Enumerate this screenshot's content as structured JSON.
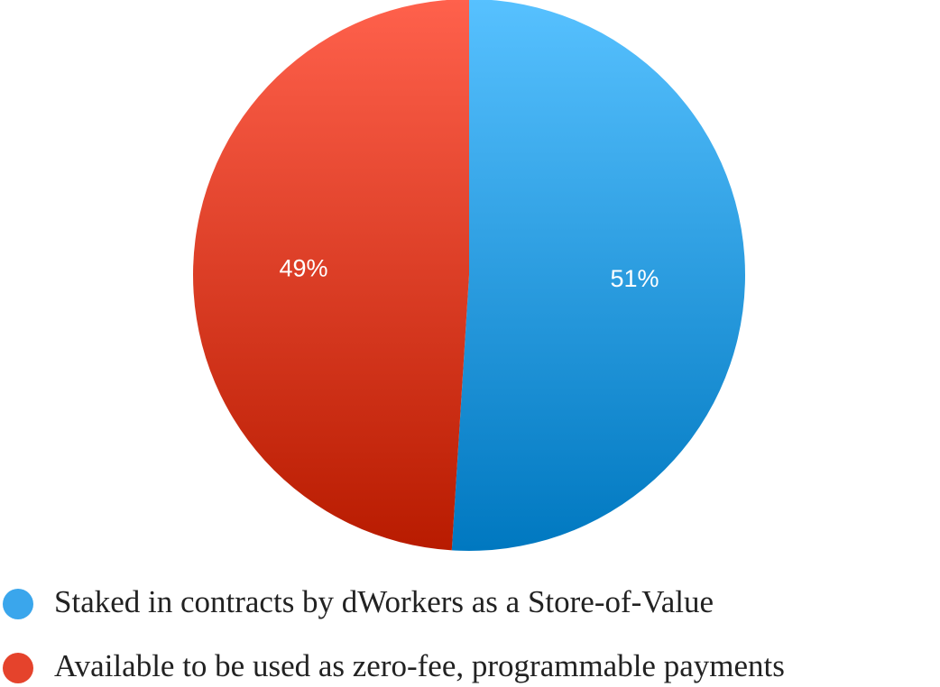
{
  "chart_data": {
    "type": "pie",
    "categories": [
      "Staked in contracts by dWorkers as a Store-of-Value",
      "Available to be used as zero-fee, programmable payments"
    ],
    "values": [
      51,
      49
    ],
    "data_labels": [
      "51%",
      "49%"
    ],
    "colors": [
      {
        "top": "#57c1ff",
        "bottom": "#0078c0"
      },
      {
        "top": "#ff614c",
        "bottom": "#b81b00"
      }
    ],
    "legend_position": "bottom-left",
    "legend_marker_colors": [
      "#3aa6ec",
      "#e5432c"
    ]
  }
}
